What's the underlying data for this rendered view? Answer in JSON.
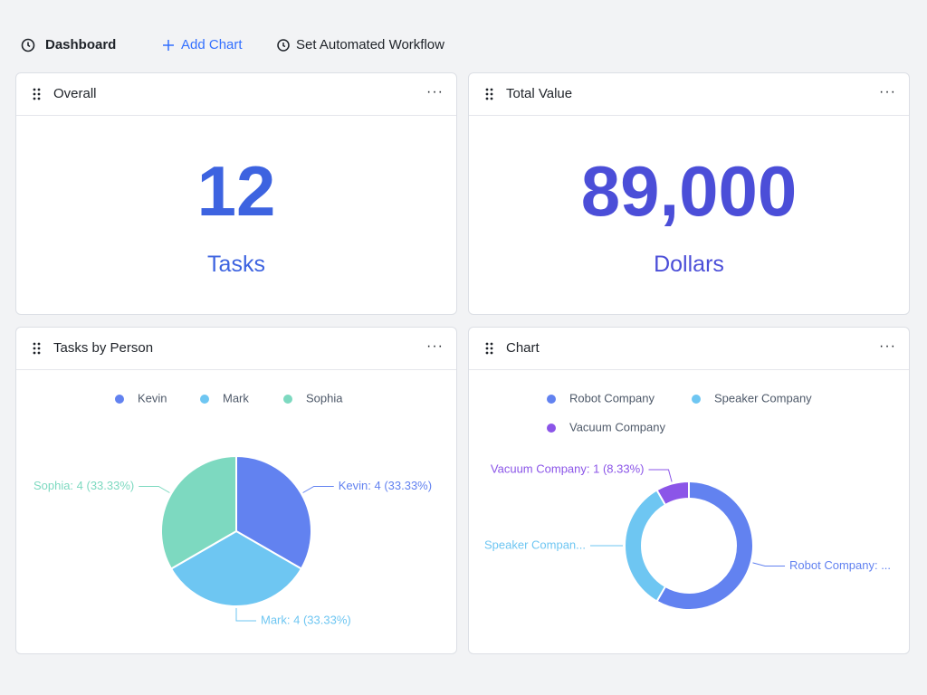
{
  "toolbar": {
    "dashboard": "Dashboard",
    "add_chart": "Add Chart",
    "workflow": "Set Automated Workflow"
  },
  "cards": [
    {
      "title": "Overall",
      "value": 12,
      "unit": "Tasks"
    },
    {
      "title": "Total Value",
      "value": "89,000",
      "unit": "Dollars"
    }
  ],
  "chart_data": [
    {
      "type": "pie",
      "title": "Tasks by Person",
      "categories": [
        "Kevin",
        "Mark",
        "Sophia"
      ],
      "values": [
        4,
        4,
        4
      ],
      "colors": [
        "#6282f0",
        "#6ec6f2",
        "#7dd9c0"
      ],
      "value_labels": [
        "Kevin: 4 (33.33%)",
        "Mark: 4 (33.33%)",
        "Sophia: 4 (33.33%)"
      ]
    },
    {
      "type": "donut",
      "title": "Chart",
      "categories": [
        "Robot Company",
        "Speaker Company",
        "Vacuum Company"
      ],
      "values": [
        7,
        4,
        1
      ],
      "colors": [
        "#6282f0",
        "#6ec6f2",
        "#8b55e8"
      ],
      "value_labels": [
        "Robot Company: ...",
        "Speaker Compan...",
        "Vacuum Company: 1 (8.33%)"
      ]
    }
  ]
}
